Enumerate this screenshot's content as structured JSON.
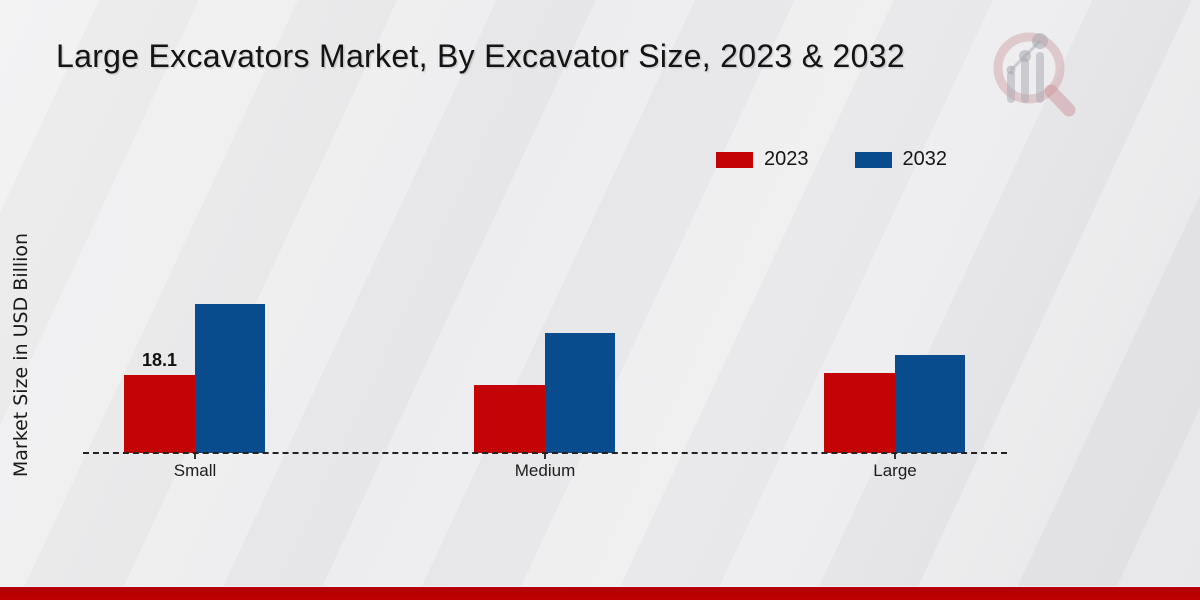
{
  "title": "Large Excavators Market, By Excavator Size, 2023 & 2032",
  "legend": [
    {
      "label": "2023",
      "color": "#c40404"
    },
    {
      "label": "2032",
      "color": "#084c8d"
    }
  ],
  "colors": {
    "series_2023": "#c40404",
    "series_2032": "#084c8d",
    "bottom_band": "#c00000",
    "text": "#1a1a1a"
  },
  "icons": {
    "watermark": "bar-chart-magnifier-logo"
  },
  "chart_data": {
    "type": "bar",
    "title": "Large Excavators Market, By Excavator Size, 2023 & 2032",
    "categories": [
      "Small",
      "Medium",
      "Large"
    ],
    "series": [
      {
        "name": "2023",
        "color": "#c40404",
        "values": [
          18.1,
          15.8,
          18.5
        ],
        "labels": [
          "18.1",
          "",
          ""
        ]
      },
      {
        "name": "2032",
        "color": "#084c8d",
        "values": [
          34.6,
          27.8,
          22.7
        ],
        "labels": [
          "",
          "",
          ""
        ]
      }
    ],
    "xlabel": "",
    "ylabel": "Market Size in USD Billion",
    "ylim": [
      0,
      40
    ],
    "grid": false,
    "y_axis_visible": false,
    "baseline_style": "dashed",
    "legend_position": "top-right",
    "shown_data_labels": [
      {
        "series": "2023",
        "category": "Small",
        "text": "18.1"
      }
    ]
  }
}
